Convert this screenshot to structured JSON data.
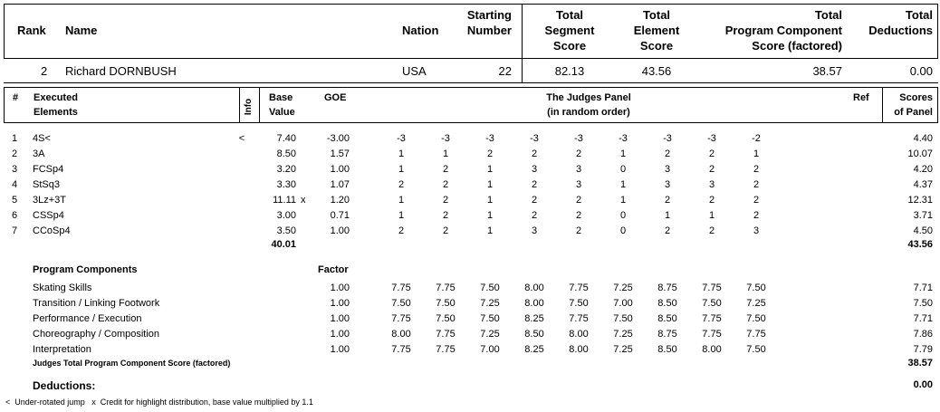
{
  "header": {
    "rank": "Rank",
    "name": "Name",
    "nation": "Nation",
    "starting_1": "Starting",
    "starting_2": "Number",
    "tss_1": "Total",
    "tss_2": "Segment",
    "tss_3": "Score",
    "tes_1": "Total",
    "tes_2": "Element",
    "tes_3": "Score",
    "pcs_1": "Total",
    "pcs_2": "Program  Component",
    "pcs_3": "Score (factored)",
    "ded_1": "Total",
    "ded_2": "Deductions"
  },
  "skater": {
    "rank": "2",
    "name": "Richard DORNBUSH",
    "nation": "USA",
    "start_no": "22",
    "tss": "82.13",
    "tes": "43.56",
    "pcs": "38.57",
    "ded": "0.00"
  },
  "elements_header": {
    "num": "#",
    "exec_1": "Executed",
    "exec_2": "Elements",
    "info": "Info",
    "base_1": "Base",
    "base_2": "Value",
    "goe": "GOE",
    "panel_1": "The Judges Panel",
    "panel_2": "(in random order)",
    "ref": "Ref",
    "scores_1": "Scores",
    "scores_2": "of Panel"
  },
  "elements": [
    {
      "n": "1",
      "name": "4S<",
      "info": "<",
      "base": "7.40",
      "x": "",
      "goe": "-3.00",
      "j": [
        "-3",
        "-3",
        "-3",
        "-3",
        "-3",
        "-3",
        "-3",
        "-3",
        "-2"
      ],
      "score": "4.40"
    },
    {
      "n": "2",
      "name": "3A",
      "info": "",
      "base": "8.50",
      "x": "",
      "goe": "1.57",
      "j": [
        "1",
        "1",
        "2",
        "2",
        "2",
        "1",
        "2",
        "2",
        "1"
      ],
      "score": "10.07"
    },
    {
      "n": "3",
      "name": "FCSp4",
      "info": "",
      "base": "3.20",
      "x": "",
      "goe": "1.00",
      "j": [
        "1",
        "2",
        "1",
        "3",
        "3",
        "0",
        "3",
        "2",
        "2"
      ],
      "score": "4.20"
    },
    {
      "n": "4",
      "name": "StSq3",
      "info": "",
      "base": "3.30",
      "x": "",
      "goe": "1.07",
      "j": [
        "2",
        "2",
        "1",
        "2",
        "3",
        "1",
        "3",
        "3",
        "2"
      ],
      "score": "4.37"
    },
    {
      "n": "5",
      "name": "3Lz+3T",
      "info": "",
      "base": "11.11",
      "x": "x",
      "goe": "1.20",
      "j": [
        "1",
        "2",
        "1",
        "2",
        "2",
        "1",
        "2",
        "2",
        "2"
      ],
      "score": "12.31"
    },
    {
      "n": "6",
      "name": "CSSp4",
      "info": "",
      "base": "3.00",
      "x": "",
      "goe": "0.71",
      "j": [
        "1",
        "2",
        "1",
        "2",
        "2",
        "0",
        "1",
        "1",
        "2"
      ],
      "score": "3.71"
    },
    {
      "n": "7",
      "name": "CCoSp4",
      "info": "",
      "base": "3.50",
      "x": "",
      "goe": "1.00",
      "j": [
        "2",
        "2",
        "1",
        "3",
        "2",
        "0",
        "2",
        "2",
        "3"
      ],
      "score": "4.50"
    }
  ],
  "elements_total_base": "40.01",
  "elements_total_score": "43.56",
  "program_components": {
    "heading": "Program Components",
    "factor_label": "Factor",
    "rows": [
      {
        "name": "Skating Skills",
        "factor": "1.00",
        "j": [
          "7.75",
          "7.75",
          "7.50",
          "8.00",
          "7.75",
          "7.25",
          "8.75",
          "7.75",
          "7.50"
        ],
        "score": "7.71"
      },
      {
        "name": "Transition / Linking Footwork",
        "factor": "1.00",
        "j": [
          "7.50",
          "7.50",
          "7.25",
          "8.00",
          "7.50",
          "7.00",
          "8.50",
          "7.50",
          "7.25"
        ],
        "score": "7.50"
      },
      {
        "name": "Performance / Execution",
        "factor": "1.00",
        "j": [
          "7.75",
          "7.50",
          "7.50",
          "8.25",
          "7.75",
          "7.50",
          "8.50",
          "7.75",
          "7.50"
        ],
        "score": "7.71"
      },
      {
        "name": "Choreography / Composition",
        "factor": "1.00",
        "j": [
          "8.00",
          "7.75",
          "7.25",
          "8.50",
          "8.00",
          "7.25",
          "8.75",
          "7.75",
          "7.75"
        ],
        "score": "7.86"
      },
      {
        "name": "Interpretation",
        "factor": "1.00",
        "j": [
          "7.75",
          "7.75",
          "7.00",
          "8.25",
          "8.00",
          "7.25",
          "8.50",
          "8.00",
          "7.50"
        ],
        "score": "7.79"
      }
    ],
    "total_label": "Judges Total Program Component Score (factored)",
    "total": "38.57"
  },
  "deductions": {
    "label": "Deductions:",
    "value": "0.00"
  },
  "footnote": "<  Under-rotated jump   x  Credit for highlight distribution, base value multiplied by 1.1"
}
